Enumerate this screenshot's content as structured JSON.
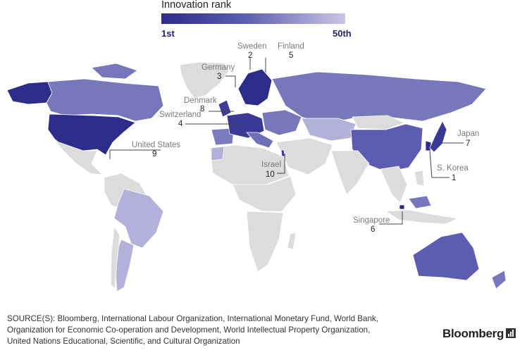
{
  "legend": {
    "title": "Innovation rank",
    "min_label": "1st",
    "max_label": "50th",
    "color_best": "#2c2c8a",
    "color_worst": "#cac6e6",
    "color_unranked": "#dcdcdc"
  },
  "callouts": [
    {
      "country": "Sweden",
      "rank": "2"
    },
    {
      "country": "Finland",
      "rank": "5"
    },
    {
      "country": "Germany",
      "rank": "3"
    },
    {
      "country": "Denmark",
      "rank": "8"
    },
    {
      "country": "Switzerland",
      "rank": "4"
    },
    {
      "country": "United States",
      "rank": "9"
    },
    {
      "country": "Israel",
      "rank": "10"
    },
    {
      "country": "Japan",
      "rank": "7"
    },
    {
      "country": "S. Korea",
      "rank": "1"
    },
    {
      "country": "Singapore",
      "rank": "6"
    }
  ],
  "source_lines": [
    "SOURCE(S): Bloomberg, International Labour Organization, International Monetary Fund, World Bank,",
    "Organization for Economic Co-operation and Development, World Intellectual Property Organization,",
    "United Nations Educational, Scientific, and Cultural Organization"
  ],
  "brand": "Bloomberg"
}
